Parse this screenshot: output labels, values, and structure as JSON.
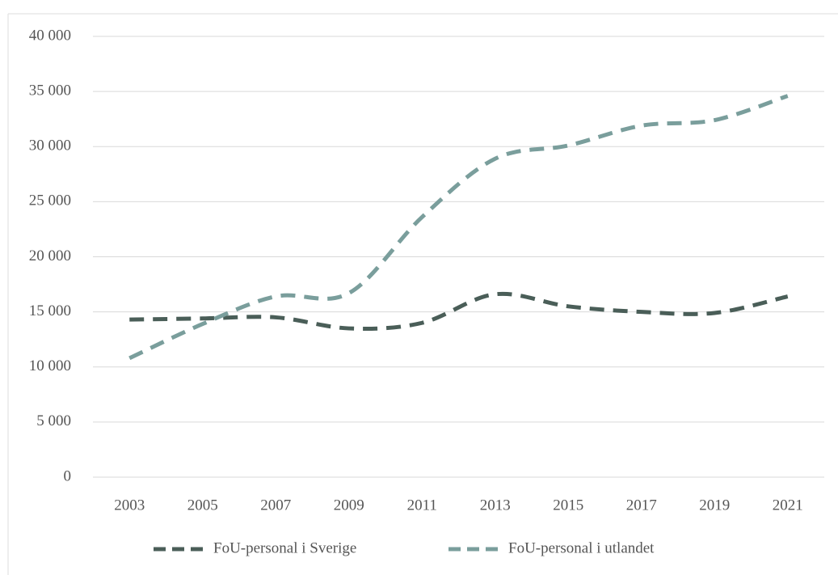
{
  "chart_data": {
    "type": "line",
    "categories": [
      "2003",
      "2005",
      "2007",
      "2009",
      "2011",
      "2013",
      "2015",
      "2017",
      "2019",
      "2021"
    ],
    "series": [
      {
        "name": "FoU-personal i Sverige",
        "color": "#4a5e58",
        "values": [
          14300,
          14400,
          14500,
          13500,
          14000,
          16600,
          15500,
          15000,
          14900,
          16400
        ]
      },
      {
        "name": "FoU-personal i utlandet",
        "color": "#7a9e9c",
        "values": [
          10800,
          13900,
          16400,
          16700,
          23600,
          28900,
          30100,
          31900,
          32400,
          34600
        ]
      }
    ],
    "ylim": [
      0,
      40000
    ],
    "yticks": [
      0,
      {
        "value": 5000,
        "label": "5 000"
      },
      {
        "value": 10000,
        "label": "10 000"
      },
      {
        "value": 15000,
        "label": "15 000"
      },
      {
        "value": 20000,
        "label": "20 000"
      },
      {
        "value": 25000,
        "label": "25 000"
      },
      {
        "value": 30000,
        "label": "30 000"
      },
      {
        "value": 35000,
        "label": "35 000"
      },
      {
        "value": 40000,
        "label": "40 000"
      }
    ],
    "grid": true,
    "legend": "bottom"
  }
}
